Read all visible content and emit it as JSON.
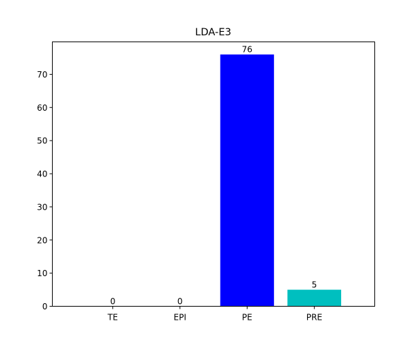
{
  "chart_data": {
    "type": "bar",
    "title": "LDA-E3",
    "xlabel": "",
    "ylabel": "",
    "categories": [
      "TE",
      "EPI",
      "PE",
      "PRE"
    ],
    "values": [
      0,
      0,
      76,
      5
    ],
    "data_labels": [
      "0",
      "0",
      "76",
      "5"
    ],
    "colors": [
      "#0000ff",
      "#0000ff",
      "#0000ff",
      "#00bfbf"
    ],
    "ylim": [
      0,
      79.8
    ],
    "yticks": [
      0,
      10,
      20,
      30,
      40,
      50,
      60,
      70
    ],
    "ytick_labels": [
      "0",
      "10",
      "20",
      "30",
      "40",
      "50",
      "60",
      "70"
    ],
    "grid": false,
    "legend": "none"
  }
}
